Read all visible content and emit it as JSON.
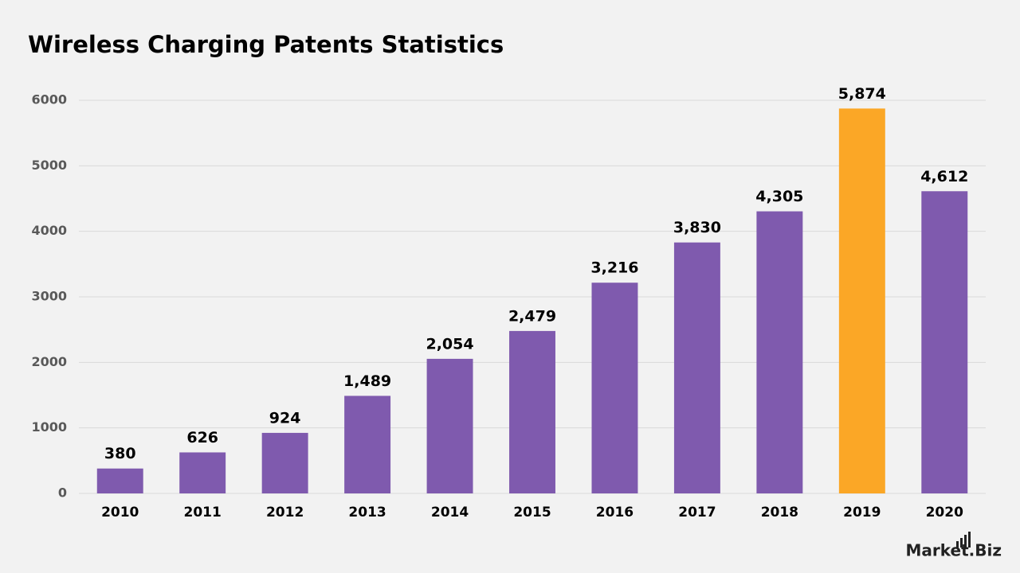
{
  "chart_data": {
    "type": "bar",
    "title": "Wireless Charging Patents Statistics",
    "categories": [
      "2010",
      "2011",
      "2012",
      "2013",
      "2014",
      "2015",
      "2016",
      "2017",
      "2018",
      "2019",
      "2020"
    ],
    "values": [
      380,
      626,
      924,
      1489,
      2054,
      2479,
      3216,
      3830,
      4305,
      5874,
      4612
    ],
    "value_labels": [
      "380",
      "626",
      "924",
      "1,489",
      "2,054",
      "2,479",
      "3,216",
      "3,830",
      "4,305",
      "5,874",
      "4,612"
    ],
    "colors": [
      "#7f5aae",
      "#7f5aae",
      "#7f5aae",
      "#7f5aae",
      "#7f5aae",
      "#7f5aae",
      "#7f5aae",
      "#7f5aae",
      "#7f5aae",
      "#fba726",
      "#7f5aae"
    ],
    "ylim": [
      0,
      6000
    ],
    "yticks": [
      0,
      1000,
      2000,
      3000,
      4000,
      5000,
      6000
    ],
    "grid": true
  },
  "logo": "Market.Biz"
}
